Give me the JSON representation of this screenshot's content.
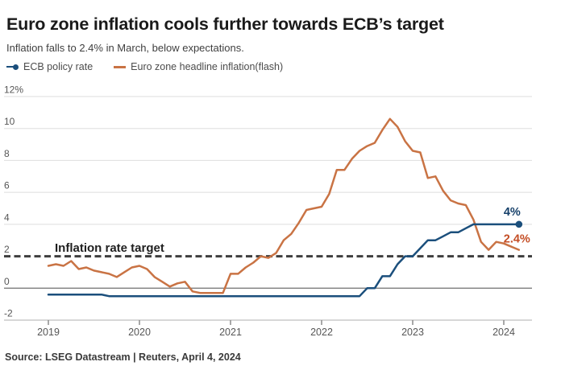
{
  "header": {
    "title": "Euro zone inflation cools further towards ECB’s target",
    "subtitle": "Inflation falls to 2.4% in March, below expectations."
  },
  "legend": {
    "items": [
      {
        "label": "ECB policy rate",
        "color": "#1b4f7c",
        "marker": "line-dot-icon"
      },
      {
        "label": "Euro zone headline inflation(flash)",
        "color": "#c97344",
        "marker": "dash-icon"
      }
    ]
  },
  "footer": {
    "source": "Source: LSEG Datastream | Reuters, April 4, 2024"
  },
  "colors": {
    "navy_line": "#1b4f7c",
    "navy_label": "#16406a",
    "orange_line": "#c97344",
    "orange_label": "#c44d24",
    "target_dash": "#3e3e3e",
    "gridline": "#dedede",
    "zero_line": "#6f6f6f",
    "bottom_axis": "#bfbfbf",
    "tick_mark": "#8a8a8a",
    "axis_text": "#565656",
    "annotation_text": "#1f1f1f"
  },
  "chart_data": {
    "type": "line",
    "title": "Euro zone inflation cools further towards ECB’s target",
    "subtitle": "Inflation falls to 2.4% in March, below expectations.",
    "x_start": "2019-01",
    "x_end": "2024-03",
    "x_frequency": "monthly",
    "xlabel": "",
    "ylabel": "",
    "ylim": [
      -2,
      12
    ],
    "grid": "horizontal",
    "legend_position": "top-left",
    "y_ticks": [
      {
        "label": "12%",
        "value": 12
      },
      {
        "label": "10",
        "value": 10
      },
      {
        "label": "8",
        "value": 8
      },
      {
        "label": "6",
        "value": 6
      },
      {
        "label": "4",
        "value": 4
      },
      {
        "label": "2",
        "value": 2
      },
      {
        "label": "0",
        "value": 0
      },
      {
        "label": "-2",
        "value": -2
      }
    ],
    "x_ticks": [
      {
        "label": "2019",
        "year": 2019
      },
      {
        "label": "2020",
        "year": 2020
      },
      {
        "label": "2021",
        "year": 2021
      },
      {
        "label": "2022",
        "year": 2022
      },
      {
        "label": "2023",
        "year": 2023
      },
      {
        "label": "2024",
        "year": 2024
      }
    ],
    "target_line": {
      "value": 2,
      "label": "Inflation rate target"
    },
    "series": [
      {
        "name": "ECB policy rate",
        "color": "#1b4f7c",
        "end_label": "4%",
        "end_label_color": "#16406a",
        "end_marker": "dot",
        "values": [
          -0.4,
          -0.4,
          -0.4,
          -0.4,
          -0.4,
          -0.4,
          -0.4,
          -0.4,
          -0.5,
          -0.5,
          -0.5,
          -0.5,
          -0.5,
          -0.5,
          -0.5,
          -0.5,
          -0.5,
          -0.5,
          -0.5,
          -0.5,
          -0.5,
          -0.5,
          -0.5,
          -0.5,
          -0.5,
          -0.5,
          -0.5,
          -0.5,
          -0.5,
          -0.5,
          -0.5,
          -0.5,
          -0.5,
          -0.5,
          -0.5,
          -0.5,
          -0.5,
          -0.5,
          -0.5,
          -0.5,
          -0.5,
          -0.5,
          0,
          0,
          0.75,
          0.75,
          1.5,
          2,
          2,
          2.5,
          3,
          3,
          3.25,
          3.5,
          3.5,
          3.75,
          4,
          4,
          4,
          4,
          4,
          4,
          4
        ]
      },
      {
        "name": "Euro zone headline inflation(flash)",
        "color": "#c97344",
        "end_label": "2.4%",
        "end_label_color": "#c44d24",
        "end_marker": "none",
        "values": [
          1.4,
          1.5,
          1.4,
          1.7,
          1.2,
          1.3,
          1.1,
          1.0,
          0.9,
          0.7,
          1.0,
          1.3,
          1.4,
          1.2,
          0.7,
          0.4,
          0.1,
          0.3,
          0.4,
          -0.2,
          -0.3,
          -0.3,
          -0.3,
          -0.3,
          0.9,
          0.9,
          1.3,
          1.6,
          2.0,
          1.9,
          2.2,
          3.0,
          3.4,
          4.1,
          4.9,
          5.0,
          5.1,
          5.9,
          7.4,
          7.4,
          8.1,
          8.6,
          8.9,
          9.1,
          9.9,
          10.6,
          10.1,
          9.2,
          8.6,
          8.5,
          6.9,
          7.0,
          6.1,
          5.5,
          5.3,
          5.2,
          4.3,
          2.9,
          2.4,
          2.9,
          2.8,
          2.6,
          2.4
        ]
      }
    ]
  }
}
